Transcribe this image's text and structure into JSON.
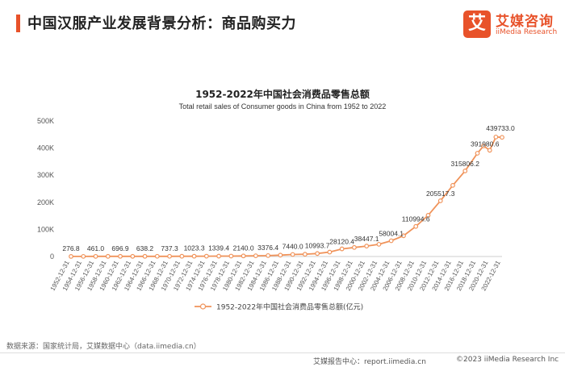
{
  "header": {
    "title": "中国汉服产业发展背景分析：商品购买力",
    "logo_icon": "艾",
    "logo_cn": "艾媒咨询",
    "logo_en": "iiMedia Research"
  },
  "colors": {
    "accent": "#e8522a",
    "line": "#f0935a"
  },
  "footer": {
    "source": "数据来源：国家统计局，艾媒数据中心（data.iimedia.cn）",
    "report": "艾媒报告中心：report.iimedia.cn",
    "copyright": "©2023  iiMedia Research  Inc"
  },
  "chart_data": {
    "type": "line",
    "title": "1952-2022年中国社会消费品零售总额",
    "subtitle": "Total retail sales of Consumer goods in China from 1952 to 2022",
    "ylim": [
      0,
      500000
    ],
    "yticks": [
      "0",
      "100K",
      "200K",
      "300K",
      "400K",
      "500K"
    ],
    "xlim": [
      1952,
      2022
    ],
    "xticks": [
      "1952-12-31",
      "1954-12-31",
      "1956-12-31",
      "1958-12-31",
      "1960-12-31",
      "1962-12-31",
      "1964-12-31",
      "1966-12-31",
      "1968-12-31",
      "1970-12-31",
      "1972-12-31",
      "1974-12-31",
      "1976-12-31",
      "1978-12-31",
      "1980-12-31",
      "1982-12-31",
      "1984-12-31",
      "1986-12-31",
      "1988-12-31",
      "1990-12-31",
      "1992-12-31",
      "1994-12-31",
      "1996-12-31",
      "1998-12-31",
      "2000-12-31",
      "2002-12-31",
      "2004-12-31",
      "2006-12-31",
      "2008-12-31",
      "2010-12-31",
      "2012-12-31",
      "2014-12-31",
      "2016-12-31",
      "2018-12-31",
      "2020-12-31",
      "2022-12-31"
    ],
    "legend": "1952-2022年中国社会消费品零售总额(亿元)",
    "legend_position": "bottom",
    "grid": false,
    "series": [
      {
        "name": "1952-2022年中国社会消费品零售总额(亿元)",
        "points": [
          [
            1952,
            276.8
          ],
          [
            1954,
            381
          ],
          [
            1956,
            461.0
          ],
          [
            1958,
            548
          ],
          [
            1960,
            696.9
          ],
          [
            1962,
            604
          ],
          [
            1964,
            638.2
          ],
          [
            1966,
            733
          ],
          [
            1968,
            737.3
          ],
          [
            1970,
            858
          ],
          [
            1972,
            1023.3
          ],
          [
            1974,
            1163
          ],
          [
            1976,
            1339.4
          ],
          [
            1978,
            1558.6
          ],
          [
            1980,
            2140.0
          ],
          [
            1982,
            2570
          ],
          [
            1984,
            3376.4
          ],
          [
            1986,
            4950
          ],
          [
            1988,
            7440.0
          ],
          [
            1990,
            8300
          ],
          [
            1992,
            10993.7
          ],
          [
            1994,
            16264
          ],
          [
            1996,
            28120.4
          ],
          [
            1998,
            33378
          ],
          [
            2000,
            38447.1
          ],
          [
            2002,
            45000
          ],
          [
            2004,
            58004.1
          ],
          [
            2006,
            76410
          ],
          [
            2008,
            110994.6
          ],
          [
            2010,
            152083
          ],
          [
            2012,
            205517.3
          ],
          [
            2014,
            262394
          ],
          [
            2016,
            315806.2
          ],
          [
            2018,
            380987
          ],
          [
            2019,
            408017
          ],
          [
            2020,
            391980.6
          ],
          [
            2021,
            440823
          ],
          [
            2022,
            439733.0
          ]
        ]
      }
    ],
    "labels": [
      {
        "x": 1952,
        "text": "276.8"
      },
      {
        "x": 1956,
        "text": "461.0"
      },
      {
        "x": 1960,
        "text": "696.9"
      },
      {
        "x": 1964,
        "text": "638.2"
      },
      {
        "x": 1968,
        "text": "737.3"
      },
      {
        "x": 1972,
        "text": "1023.3"
      },
      {
        "x": 1976,
        "text": "1339.4"
      },
      {
        "x": 1980,
        "text": "2140.0"
      },
      {
        "x": 1984,
        "text": "3376.4"
      },
      {
        "x": 1988,
        "text": "7440.0"
      },
      {
        "x": 1992,
        "text": "10993.7"
      },
      {
        "x": 1996,
        "text": "28120.4"
      },
      {
        "x": 2000,
        "text": "38447.1"
      },
      {
        "x": 2004,
        "text": "58004.1"
      },
      {
        "x": 2008,
        "text": "110994.6"
      },
      {
        "x": 2012,
        "text": "205517.3"
      },
      {
        "x": 2016,
        "text": "315806.2"
      },
      {
        "x": 2020,
        "text": "391980.6"
      },
      {
        "x": 2022,
        "text": "439733.0"
      }
    ]
  }
}
